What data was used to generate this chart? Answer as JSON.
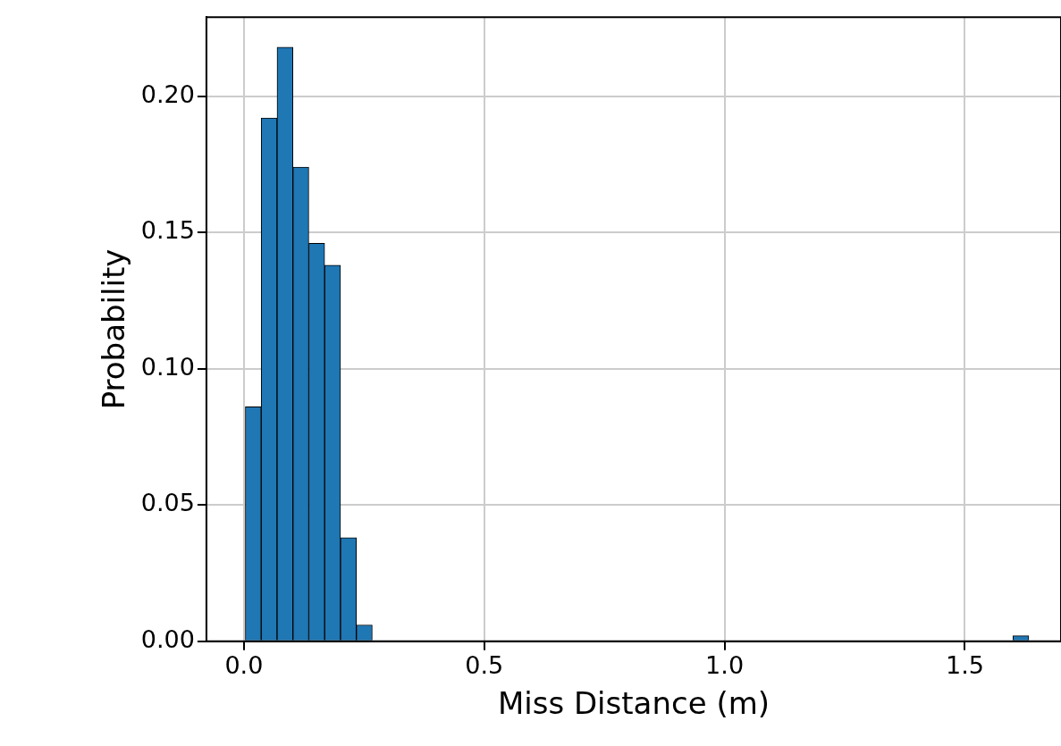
{
  "chart_data": {
    "type": "histogram",
    "xlabel": "Miss Distance (m)",
    "ylabel": "Probability",
    "bins": [
      0.003,
      0.036,
      0.069,
      0.102,
      0.135,
      0.168,
      0.201,
      0.234,
      0.267,
      1.6,
      1.633
    ],
    "values": [
      0.086,
      0.192,
      0.218,
      0.174,
      0.146,
      0.138,
      0.038,
      0.006,
      0,
      0.002
    ],
    "color": "#1f77b4",
    "xlim": [
      -0.078,
      1.7
    ],
    "ylim": [
      0,
      0.229
    ],
    "xticks": [
      {
        "value": 0,
        "label": "0.0"
      },
      {
        "value": 0.5,
        "label": "0.5"
      },
      {
        "value": 1,
        "label": "1.0"
      },
      {
        "value": 1.5,
        "label": "1.5"
      }
    ],
    "yticks": [
      {
        "value": 0,
        "label": "0.00"
      },
      {
        "value": 0.05,
        "label": "0.05"
      },
      {
        "value": 0.1,
        "label": "0.10"
      },
      {
        "value": 0.15,
        "label": "0.15"
      },
      {
        "value": 0.2,
        "label": "0.20"
      }
    ],
    "grid": true
  }
}
